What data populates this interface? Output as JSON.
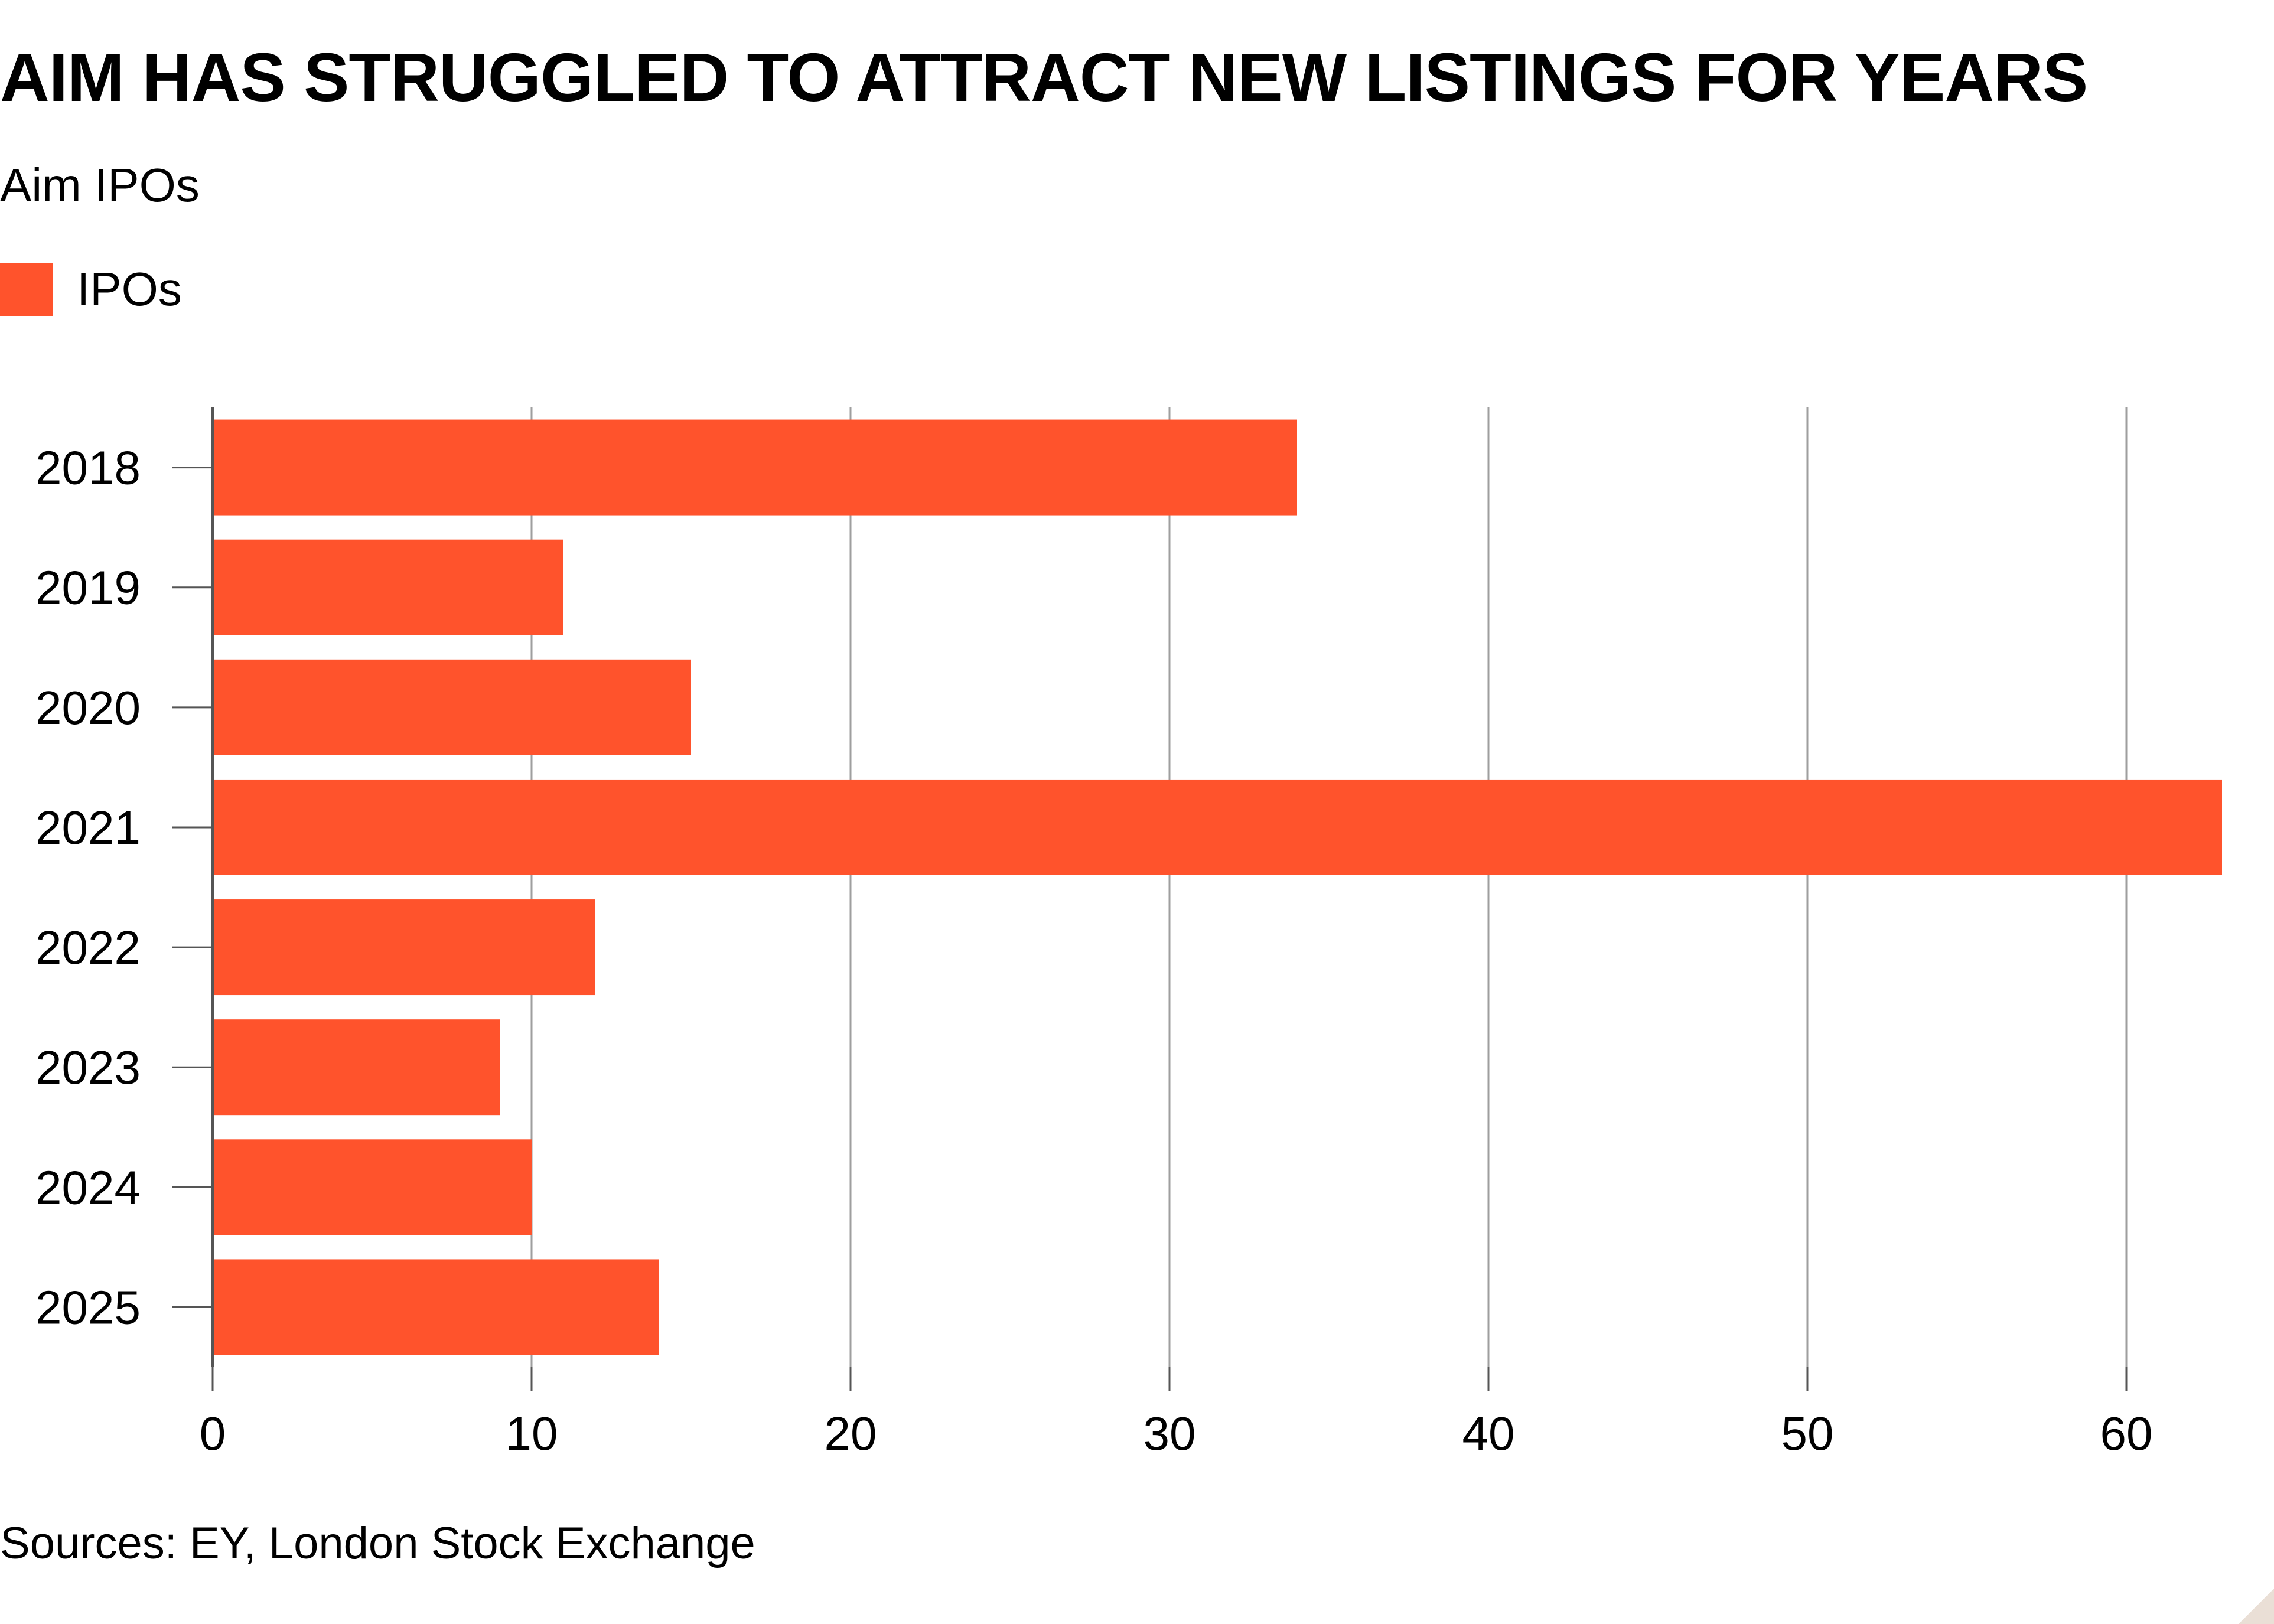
{
  "chart_data": {
    "type": "bar",
    "orientation": "horizontal",
    "title": "AIM HAS STRUGGLED TO ATTRACT NEW LISTINGS FOR YEARS",
    "subtitle": "Aim IPOs",
    "categories": [
      "2018",
      "2019",
      "2020",
      "2021",
      "2022",
      "2023",
      "2024",
      "2025"
    ],
    "series": [
      {
        "name": "IPOs",
        "values": [
          34,
          11,
          15,
          63,
          12,
          9,
          10,
          14
        ],
        "color": "#ff532c"
      }
    ],
    "xlim": [
      0,
      64
    ],
    "xticks": [
      0,
      10,
      20,
      30,
      40,
      50,
      60
    ],
    "grid": true,
    "legend_position": "top-left",
    "source": "Sources: EY, London Stock Exchange"
  }
}
